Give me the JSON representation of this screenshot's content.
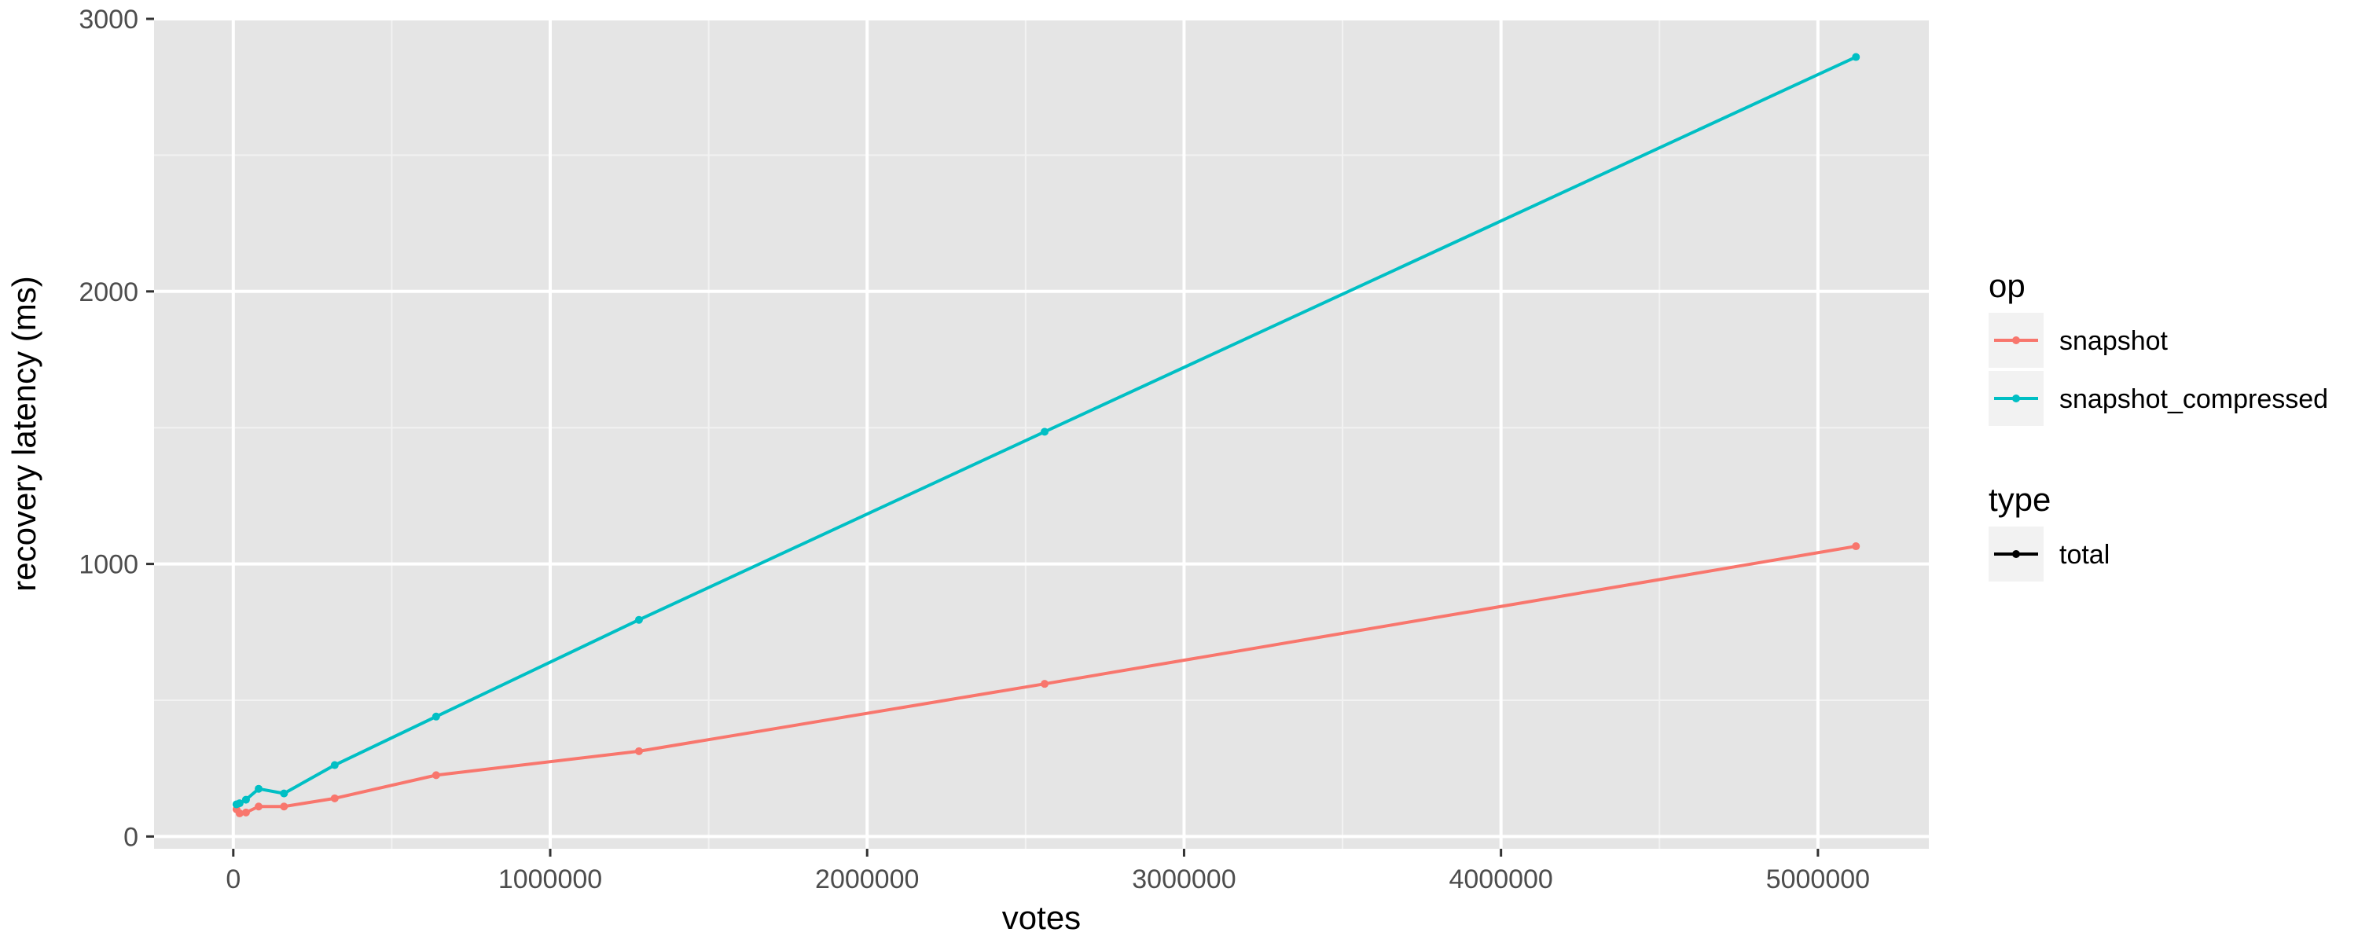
{
  "chart_data": {
    "type": "line",
    "xlabel": "votes",
    "ylabel": "recovery latency (ms)",
    "xlim": [
      -250000,
      5350000
    ],
    "ylim": [
      -45,
      3000
    ],
    "xticks": [
      0,
      1000000,
      2000000,
      3000000,
      4000000,
      5000000
    ],
    "xtick_labels": [
      "0",
      "1000000",
      "2000000",
      "3000000",
      "4000000",
      "5000000"
    ],
    "yticks": [
      0,
      1000,
      2000,
      3000
    ],
    "ytick_labels": [
      "0",
      "1000",
      "2000",
      "3000"
    ],
    "grid": true,
    "background": "#e5e5e5",
    "legend_position": "right",
    "legends": [
      {
        "title": "op",
        "entries": [
          {
            "label": "snapshot",
            "color": "#f8766d"
          },
          {
            "label": "snapshot_compressed",
            "color": "#00bfc4"
          }
        ]
      },
      {
        "title": "type",
        "entries": [
          {
            "label": "total",
            "color": "#000000"
          }
        ]
      }
    ],
    "series": [
      {
        "name": "snapshot",
        "color": "#f8766d",
        "x": [
          10000,
          20000,
          40000,
          80000,
          160000,
          320000,
          640000,
          1280000,
          2560000,
          5120000
        ],
        "y": [
          100,
          85,
          88,
          110,
          110,
          140,
          225,
          313,
          560,
          1065
        ]
      },
      {
        "name": "snapshot_compressed",
        "color": "#00bfc4",
        "x": [
          10000,
          20000,
          40000,
          80000,
          160000,
          320000,
          640000,
          1280000,
          2560000,
          5120000
        ],
        "y": [
          118,
          122,
          135,
          175,
          158,
          262,
          440,
          795,
          1485,
          2860
        ]
      }
    ]
  }
}
